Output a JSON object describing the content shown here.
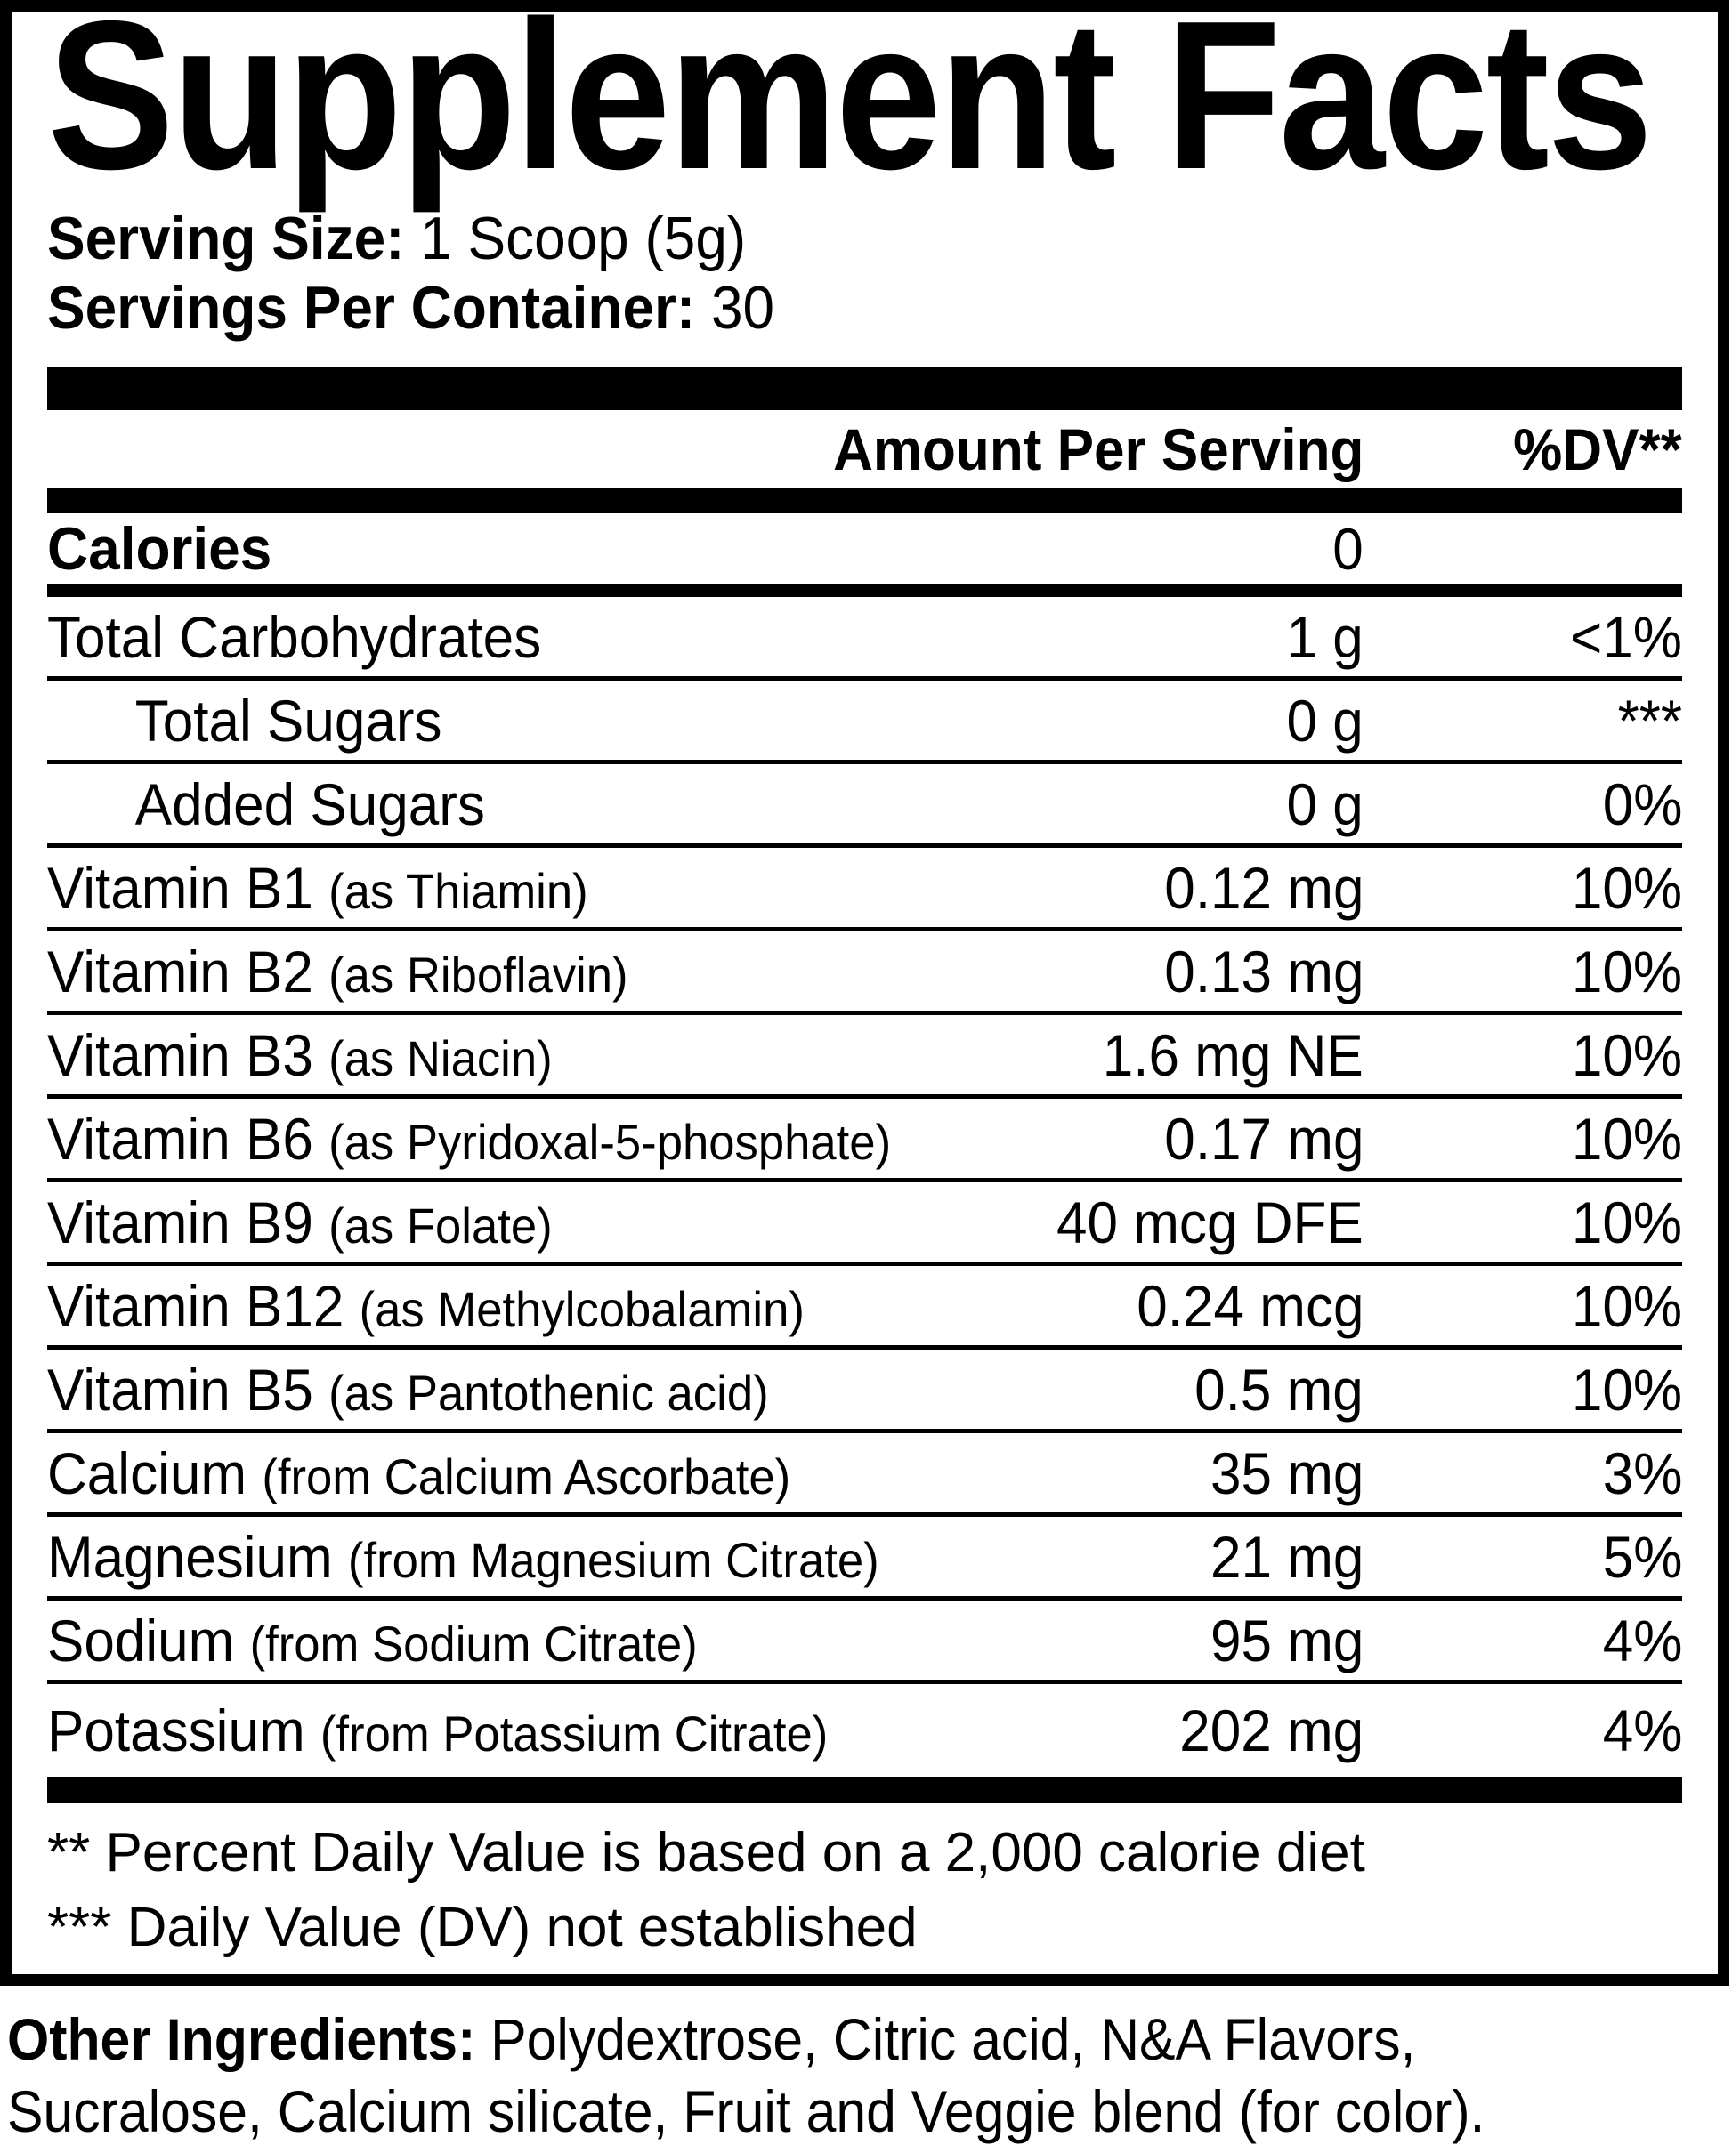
{
  "colors": {
    "text": "#000000",
    "background": "#ffffff"
  },
  "panel": {
    "title": "Supplement Facts",
    "serving_size_label": "Serving Size:",
    "serving_size_value": "1 Scoop (5g)",
    "servings_label": "Servings Per Container:",
    "servings_value": "30",
    "header": {
      "amount": "Amount Per Serving",
      "dv": "%DV**"
    },
    "rows": [
      {
        "name": "Calories",
        "qualifier": "",
        "amount": "0",
        "dv": "",
        "bold": true,
        "indent": false
      },
      {
        "name": "Total Carbohydrates",
        "qualifier": "",
        "amount": "1 g",
        "dv": "<1%",
        "bold": false,
        "indent": false
      },
      {
        "name": "Total Sugars",
        "qualifier": "",
        "amount": "0 g",
        "dv": "***",
        "bold": false,
        "indent": true
      },
      {
        "name": "Added Sugars",
        "qualifier": "",
        "amount": "0 g",
        "dv": "0%",
        "bold": false,
        "indent": true
      },
      {
        "name": "Vitamin B1",
        "qualifier": "(as Thiamin)",
        "amount": "0.12 mg",
        "dv": "10%",
        "bold": false,
        "indent": false
      },
      {
        "name": "Vitamin B2",
        "qualifier": "(as Riboflavin)",
        "amount": "0.13 mg",
        "dv": "10%",
        "bold": false,
        "indent": false
      },
      {
        "name": "Vitamin B3",
        "qualifier": "(as Niacin)",
        "amount": "1.6 mg NE",
        "dv": "10%",
        "bold": false,
        "indent": false
      },
      {
        "name": "Vitamin B6",
        "qualifier": "(as Pyridoxal-5-phosphate)",
        "amount": "0.17 mg",
        "dv": "10%",
        "bold": false,
        "indent": false
      },
      {
        "name": "Vitamin B9",
        "qualifier": "(as Folate)",
        "amount": "40 mcg DFE",
        "dv": "10%",
        "bold": false,
        "indent": false
      },
      {
        "name": "Vitamin B12",
        "qualifier": "(as Methylcobalamin)",
        "amount": "0.24 mcg",
        "dv": "10%",
        "bold": false,
        "indent": false
      },
      {
        "name": "Vitamin B5",
        "qualifier": "(as Pantothenic acid)",
        "amount": "0.5 mg",
        "dv": "10%",
        "bold": false,
        "indent": false
      },
      {
        "name": "Calcium",
        "qualifier": "(from Calcium Ascorbate)",
        "amount": "35 mg",
        "dv": "3%",
        "bold": false,
        "indent": false
      },
      {
        "name": "Magnesium",
        "qualifier": "(from Magnesium Citrate)",
        "amount": "21 mg",
        "dv": "5%",
        "bold": false,
        "indent": false
      },
      {
        "name": "Sodium",
        "qualifier": "(from Sodium Citrate)",
        "amount": "95 mg",
        "dv": "4%",
        "bold": false,
        "indent": false
      },
      {
        "name": "Potassium",
        "qualifier": "(from Potassium Citrate)",
        "amount": "202 mg",
        "dv": "4%",
        "bold": false,
        "indent": false
      }
    ],
    "footnotes": [
      "** Percent Daily Value is based on a 2,000 calorie diet",
      "*** Daily Value (DV) not established"
    ]
  },
  "other_ingredients": {
    "label": "Other Ingredients:",
    "line1_rest": " Polydextrose, Citric acid, N&A Flavors,",
    "line2": "Sucralose, Calcium silicate, Fruit and Veggie blend (for color)."
  }
}
